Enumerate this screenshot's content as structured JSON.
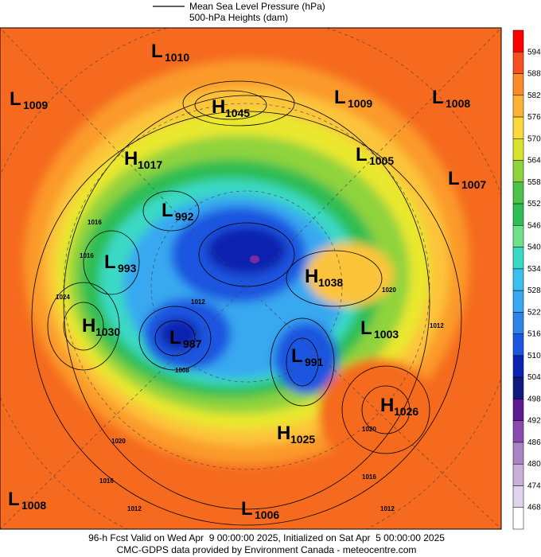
{
  "legend": [
    "Mean Sea Level Pressure (hPa)",
    "500-hPa Heights (dam)"
  ],
  "colorbar": [
    594,
    588,
    582,
    576,
    570,
    564,
    558,
    552,
    546,
    540,
    534,
    528,
    522,
    516,
    510,
    504,
    498,
    492,
    486,
    480,
    474,
    468
  ],
  "centers": [
    {
      "letter": "L",
      "value": "1010"
    },
    {
      "letter": "L",
      "value": "1009"
    },
    {
      "letter": "H",
      "value": "1045"
    },
    {
      "letter": "L",
      "value": "1009"
    },
    {
      "letter": "L",
      "value": "1008"
    },
    {
      "letter": "H",
      "value": "1017"
    },
    {
      "letter": "L",
      "value": "1005"
    },
    {
      "letter": "L",
      "value": "1007"
    },
    {
      "letter": "L",
      "value": "992"
    },
    {
      "letter": "L",
      "value": "993"
    },
    {
      "letter": "H",
      "value": "1038"
    },
    {
      "letter": "H",
      "value": "1030"
    },
    {
      "letter": "L",
      "value": "1003"
    },
    {
      "letter": "L",
      "value": "987"
    },
    {
      "letter": "L",
      "value": "991"
    },
    {
      "letter": "H",
      "value": "1026"
    },
    {
      "letter": "H",
      "value": "1025"
    },
    {
      "letter": "L",
      "value": "1008"
    },
    {
      "letter": "L",
      "value": "1006"
    }
  ],
  "isobar_labels": [
    "1016",
    "1016",
    "1024",
    "1012",
    "1008",
    "1020",
    "1016",
    "1012",
    "1020",
    "1012",
    "1020",
    "1016",
    "1012"
  ],
  "footer": [
    "96-h Fcst Valid on Wed Apr  9 00:00:00 2025, Initialized on Sat Apr  5 00:00:00 2025",
    "CMC-GDPS data provided by Environment Canada - meteocentre.com"
  ]
}
